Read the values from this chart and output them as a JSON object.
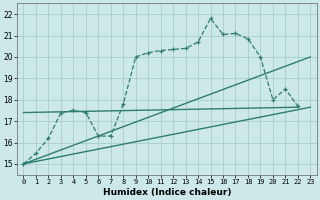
{
  "background_color": "#cce8e8",
  "grid_color": "#aacccc",
  "line_color": "#2e7d6e",
  "xlabel": "Humidex (Indice chaleur)",
  "ylim": [
    14.5,
    22.5
  ],
  "xlim": [
    -0.5,
    23.5
  ],
  "yticks": [
    15,
    16,
    17,
    18,
    19,
    20,
    21,
    22
  ],
  "xticks": [
    0,
    1,
    2,
    3,
    4,
    5,
    6,
    7,
    8,
    9,
    10,
    11,
    12,
    13,
    14,
    15,
    16,
    17,
    18,
    19,
    20,
    21,
    22,
    23
  ],
  "main_x": [
    0,
    1,
    2,
    3,
    4,
    5,
    6,
    7,
    8,
    9,
    10,
    11,
    12,
    13,
    14,
    15,
    16,
    17,
    18,
    19,
    20,
    21,
    22
  ],
  "main_y": [
    15.0,
    15.5,
    16.2,
    17.4,
    17.5,
    17.4,
    16.3,
    16.3,
    17.8,
    20.0,
    20.2,
    20.3,
    20.35,
    20.4,
    20.7,
    21.8,
    21.05,
    21.1,
    20.85,
    20.0,
    18.0,
    18.5,
    17.7
  ],
  "line1_x": [
    0,
    23
  ],
  "line1_y": [
    15.0,
    17.65
  ],
  "line2_x": [
    0,
    23
  ],
  "line2_y": [
    15.0,
    20.0
  ],
  "line3_x": [
    0,
    22
  ],
  "line3_y": [
    17.4,
    17.65
  ]
}
